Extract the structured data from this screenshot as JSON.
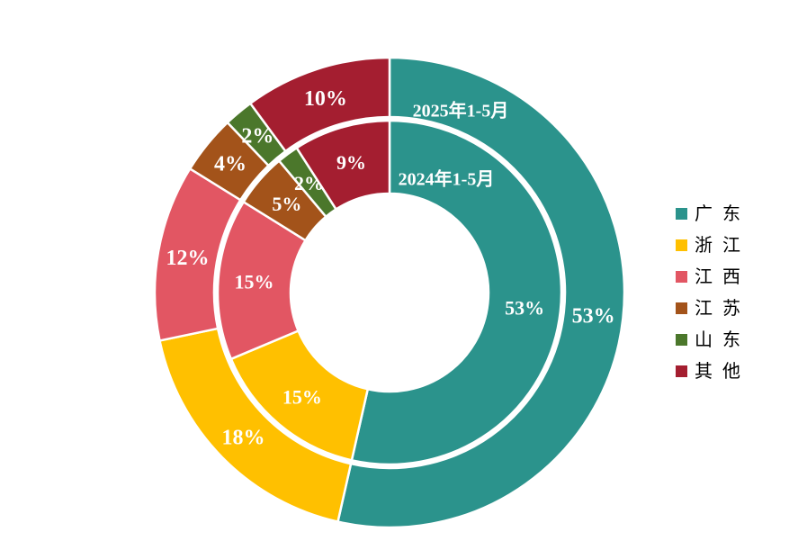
{
  "chart_data": {
    "type": "pie",
    "subtype": "nested-donut",
    "title": "",
    "categories": [
      "广 东",
      "浙 江",
      "江 西",
      "江 苏",
      "山 东",
      "其 他"
    ],
    "colors": [
      "#2B938C",
      "#FFC000",
      "#E25663",
      "#A3531A",
      "#4B772B",
      "#A41E30"
    ],
    "series": [
      {
        "name": "2025年1-5月",
        "ring": "outer",
        "unit": "%",
        "values": [
          53,
          18,
          12,
          4,
          2,
          10
        ]
      },
      {
        "name": "2024年1-5月",
        "ring": "inner",
        "unit": "%",
        "values": [
          53,
          15,
          15,
          5,
          2,
          9
        ]
      }
    ],
    "label_format": "percent",
    "label_color": "#FFFFFF",
    "slice_border_color": "#FFFFFF",
    "legend_position": "right",
    "background": "#FFFFFF",
    "start_angle": "top",
    "direction": "clockwise"
  }
}
